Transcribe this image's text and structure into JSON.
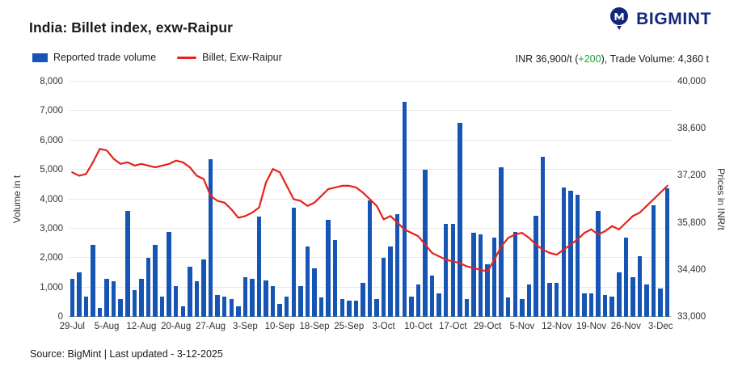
{
  "header": {
    "title": "India: Billet index, exw-Raipur",
    "brand": "BIGMINT"
  },
  "legend": [
    {
      "label": "Reported trade volume",
      "type": "bar",
      "color": "#1655b4"
    },
    {
      "label": "Billet, Exw-Raipur",
      "type": "line",
      "color": "#e8211a"
    }
  ],
  "info": {
    "prefix": "INR 36,900/t (",
    "change": "+200",
    "suffix": "), Trade Volume: 4,360 t",
    "change_color": "#13a438"
  },
  "footer": {
    "source": "Source: BigMint | Last updated - 3-12-2025"
  },
  "chart_data": {
    "type": "bar+line",
    "title": "India: Billet index, exw-Raipur",
    "grid": true,
    "legend_position": "top-left",
    "x_tick_labels": [
      "29-Jul",
      "5-Aug",
      "12-Aug",
      "20-Aug",
      "27-Aug",
      "3-Sep",
      "10-Sep",
      "18-Sep",
      "25-Sep",
      "3-Oct",
      "10-Oct",
      "17-Oct",
      "29-Oct",
      "5-Nov",
      "12-Nov",
      "19-Nov",
      "26-Nov",
      "3-Dec"
    ],
    "x_tick_every": 5,
    "left_axis": {
      "label": "Volume in t",
      "min": 0,
      "max": 8000,
      "tick_step": 1000,
      "ticks": [
        "8,000",
        "7,000",
        "6,000",
        "5,000",
        "4,000",
        "3,000",
        "2,000",
        "1,000",
        "0"
      ]
    },
    "right_axis": {
      "label": "Prices in INR/t",
      "min": 33000,
      "max": 40000,
      "tick_step": 1400,
      "ticks": [
        "40,000",
        "38,600",
        "37,200",
        "35,800",
        "34,400",
        "33,000"
      ]
    },
    "series": [
      {
        "name": "Reported trade volume",
        "type": "bar",
        "axis": "left",
        "color": "#1655b4",
        "values": [
          1300,
          1500,
          700,
          2450,
          300,
          1300,
          1200,
          600,
          3600,
          900,
          1300,
          2000,
          2450,
          700,
          2900,
          1050,
          350,
          1700,
          1200,
          1950,
          5350,
          750,
          700,
          600,
          350,
          1350,
          1300,
          3400,
          1250,
          1050,
          450,
          700,
          3700,
          1050,
          2400,
          1650,
          650,
          3300,
          2600,
          600,
          550,
          550,
          1150,
          3950,
          600,
          2000,
          2400,
          3500,
          7300,
          700,
          1100,
          5000,
          1400,
          800,
          3150,
          3150,
          6600,
          600,
          2850,
          2800,
          1800,
          2700,
          5100,
          650,
          2900,
          600,
          1100,
          3450,
          5450,
          1150,
          1150,
          4400,
          4300,
          4150,
          800,
          800,
          3600,
          750,
          700,
          1500,
          2700,
          1350,
          2050,
          1100,
          3800,
          950,
          4360
        ]
      },
      {
        "name": "Billet, Exw-Raipur",
        "type": "line",
        "axis": "right",
        "color": "#e8211a",
        "values": [
          37300,
          37200,
          37250,
          37600,
          38000,
          37950,
          37700,
          37550,
          37600,
          37500,
          37550,
          37500,
          37450,
          37500,
          37550,
          37650,
          37600,
          37450,
          37200,
          37100,
          36600,
          36450,
          36400,
          36200,
          35950,
          36000,
          36100,
          36250,
          37000,
          37400,
          37300,
          36900,
          36500,
          36450,
          36300,
          36400,
          36600,
          36800,
          36850,
          36900,
          36900,
          36850,
          36700,
          36500,
          36300,
          35900,
          36000,
          35800,
          35600,
          35500,
          35400,
          35150,
          34900,
          34800,
          34700,
          34650,
          34600,
          34500,
          34450,
          34400,
          34350,
          34700,
          35100,
          35350,
          35450,
          35500,
          35350,
          35150,
          35000,
          34900,
          34850,
          35000,
          35150,
          35300,
          35500,
          35600,
          35450,
          35550,
          35700,
          35600,
          35800,
          36000,
          36100,
          36300,
          36500,
          36700,
          36900
        ]
      }
    ]
  }
}
